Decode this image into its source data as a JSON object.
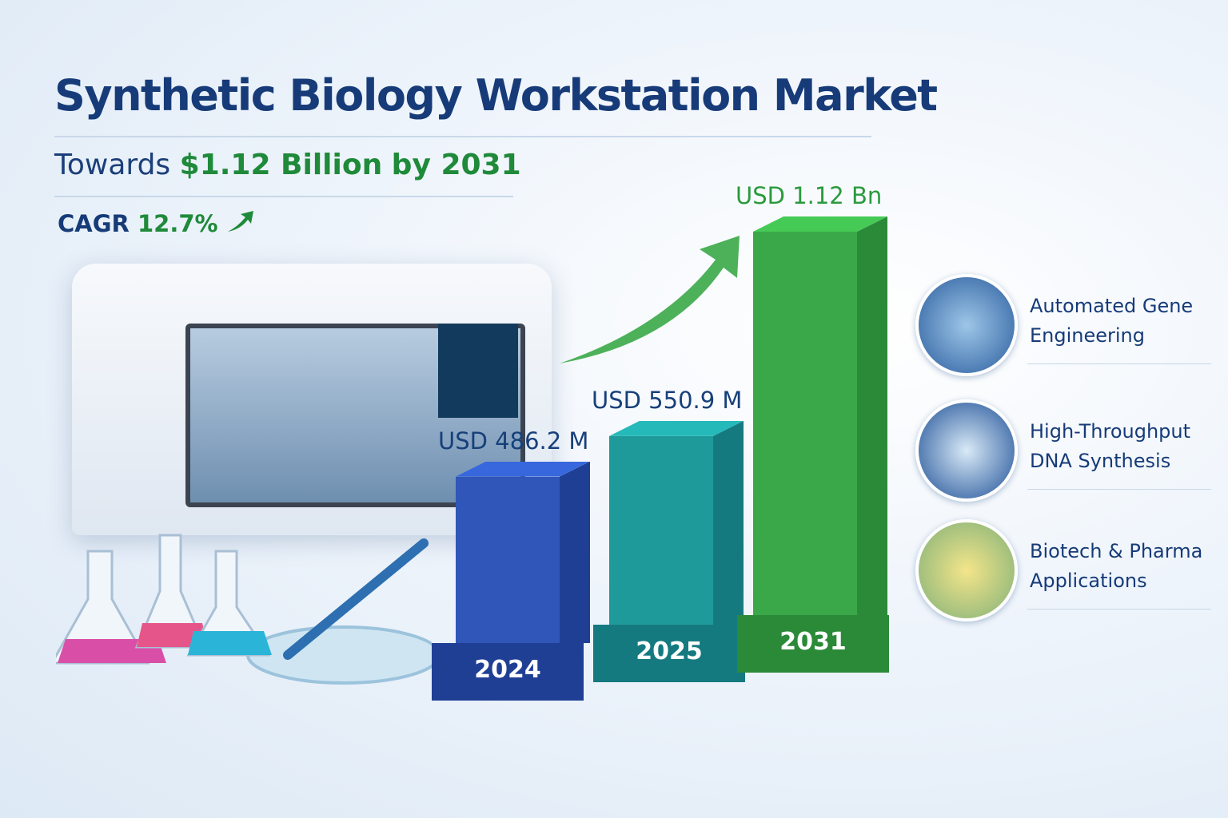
{
  "header": {
    "title": "Synthetic Biology Workstation Market",
    "subtitle_prefix": "Towards",
    "subtitle_value": "$1.12 Billion",
    "subtitle_suffix": "by 2031",
    "cagr_label": "CAGR",
    "cagr_value": "12.7%"
  },
  "chart_data": {
    "type": "bar",
    "categories": [
      "2024",
      "2025",
      "2031"
    ],
    "values": [
      486.2,
      550.9,
      1120
    ],
    "unit": "USD Million",
    "data_labels": [
      "USD 486.2 M",
      "USD 550.9 M",
      "USD 1.12 Bn"
    ],
    "colors": [
      "#2f56b8",
      "#1f9a9a",
      "#3aa848"
    ],
    "trend": "upward-arrow"
  },
  "features": [
    {
      "label_line1": "Automated Gene",
      "label_line2": "Engineering",
      "icon": "robotic-arm-icon"
    },
    {
      "label_line1": "High-Throughput",
      "label_line2": "DNA Synthesis",
      "icon": "well-plate-icon"
    },
    {
      "label_line1": "Biotech & Pharma",
      "label_line2": "Applications",
      "icon": "flask-plant-icon"
    }
  ]
}
